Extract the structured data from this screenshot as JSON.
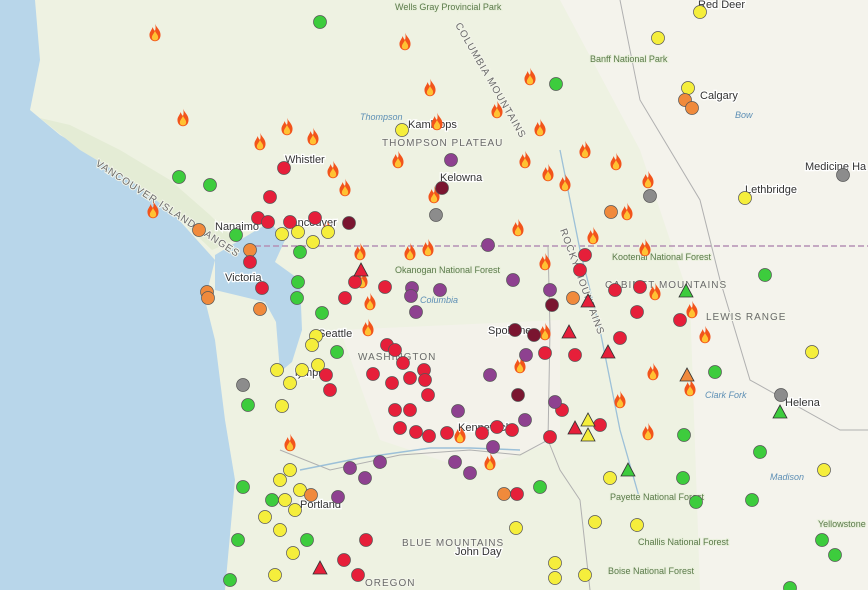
{
  "labels": [
    "Red Deer",
    "Wells Gray Provincial Park",
    "Calgary",
    "Banff National Park",
    "Kamloops",
    "THOMPSON PLATEAU",
    "Thompson",
    "Whistler",
    "Kelowna",
    "Medicine Ha",
    "Lethbridge",
    "Nanaimo",
    "Vancouver",
    "Victoria",
    "Okanogan National Forest",
    "Seattle",
    "lympia",
    "WASHINGTON",
    "Spokane",
    "Kennewick",
    "Portland",
    "OREGON",
    "BLUE MOUNTAINS",
    "John Day",
    "Boise National Forest",
    "Payette National Forest",
    "Challis National Forest",
    "Kootenai National Forest",
    "CABINET MOUNTAINS",
    "LEWIS RANGE",
    "Helena",
    "Clark Fork",
    "Madison",
    "Yellowstone National Park",
    "VANCOUVER ISLAND RANGES",
    "COLUMBIA MOUNTAINS",
    "ROCKY MOUNTAINS",
    "Bow",
    "Columbia"
  ]
}
